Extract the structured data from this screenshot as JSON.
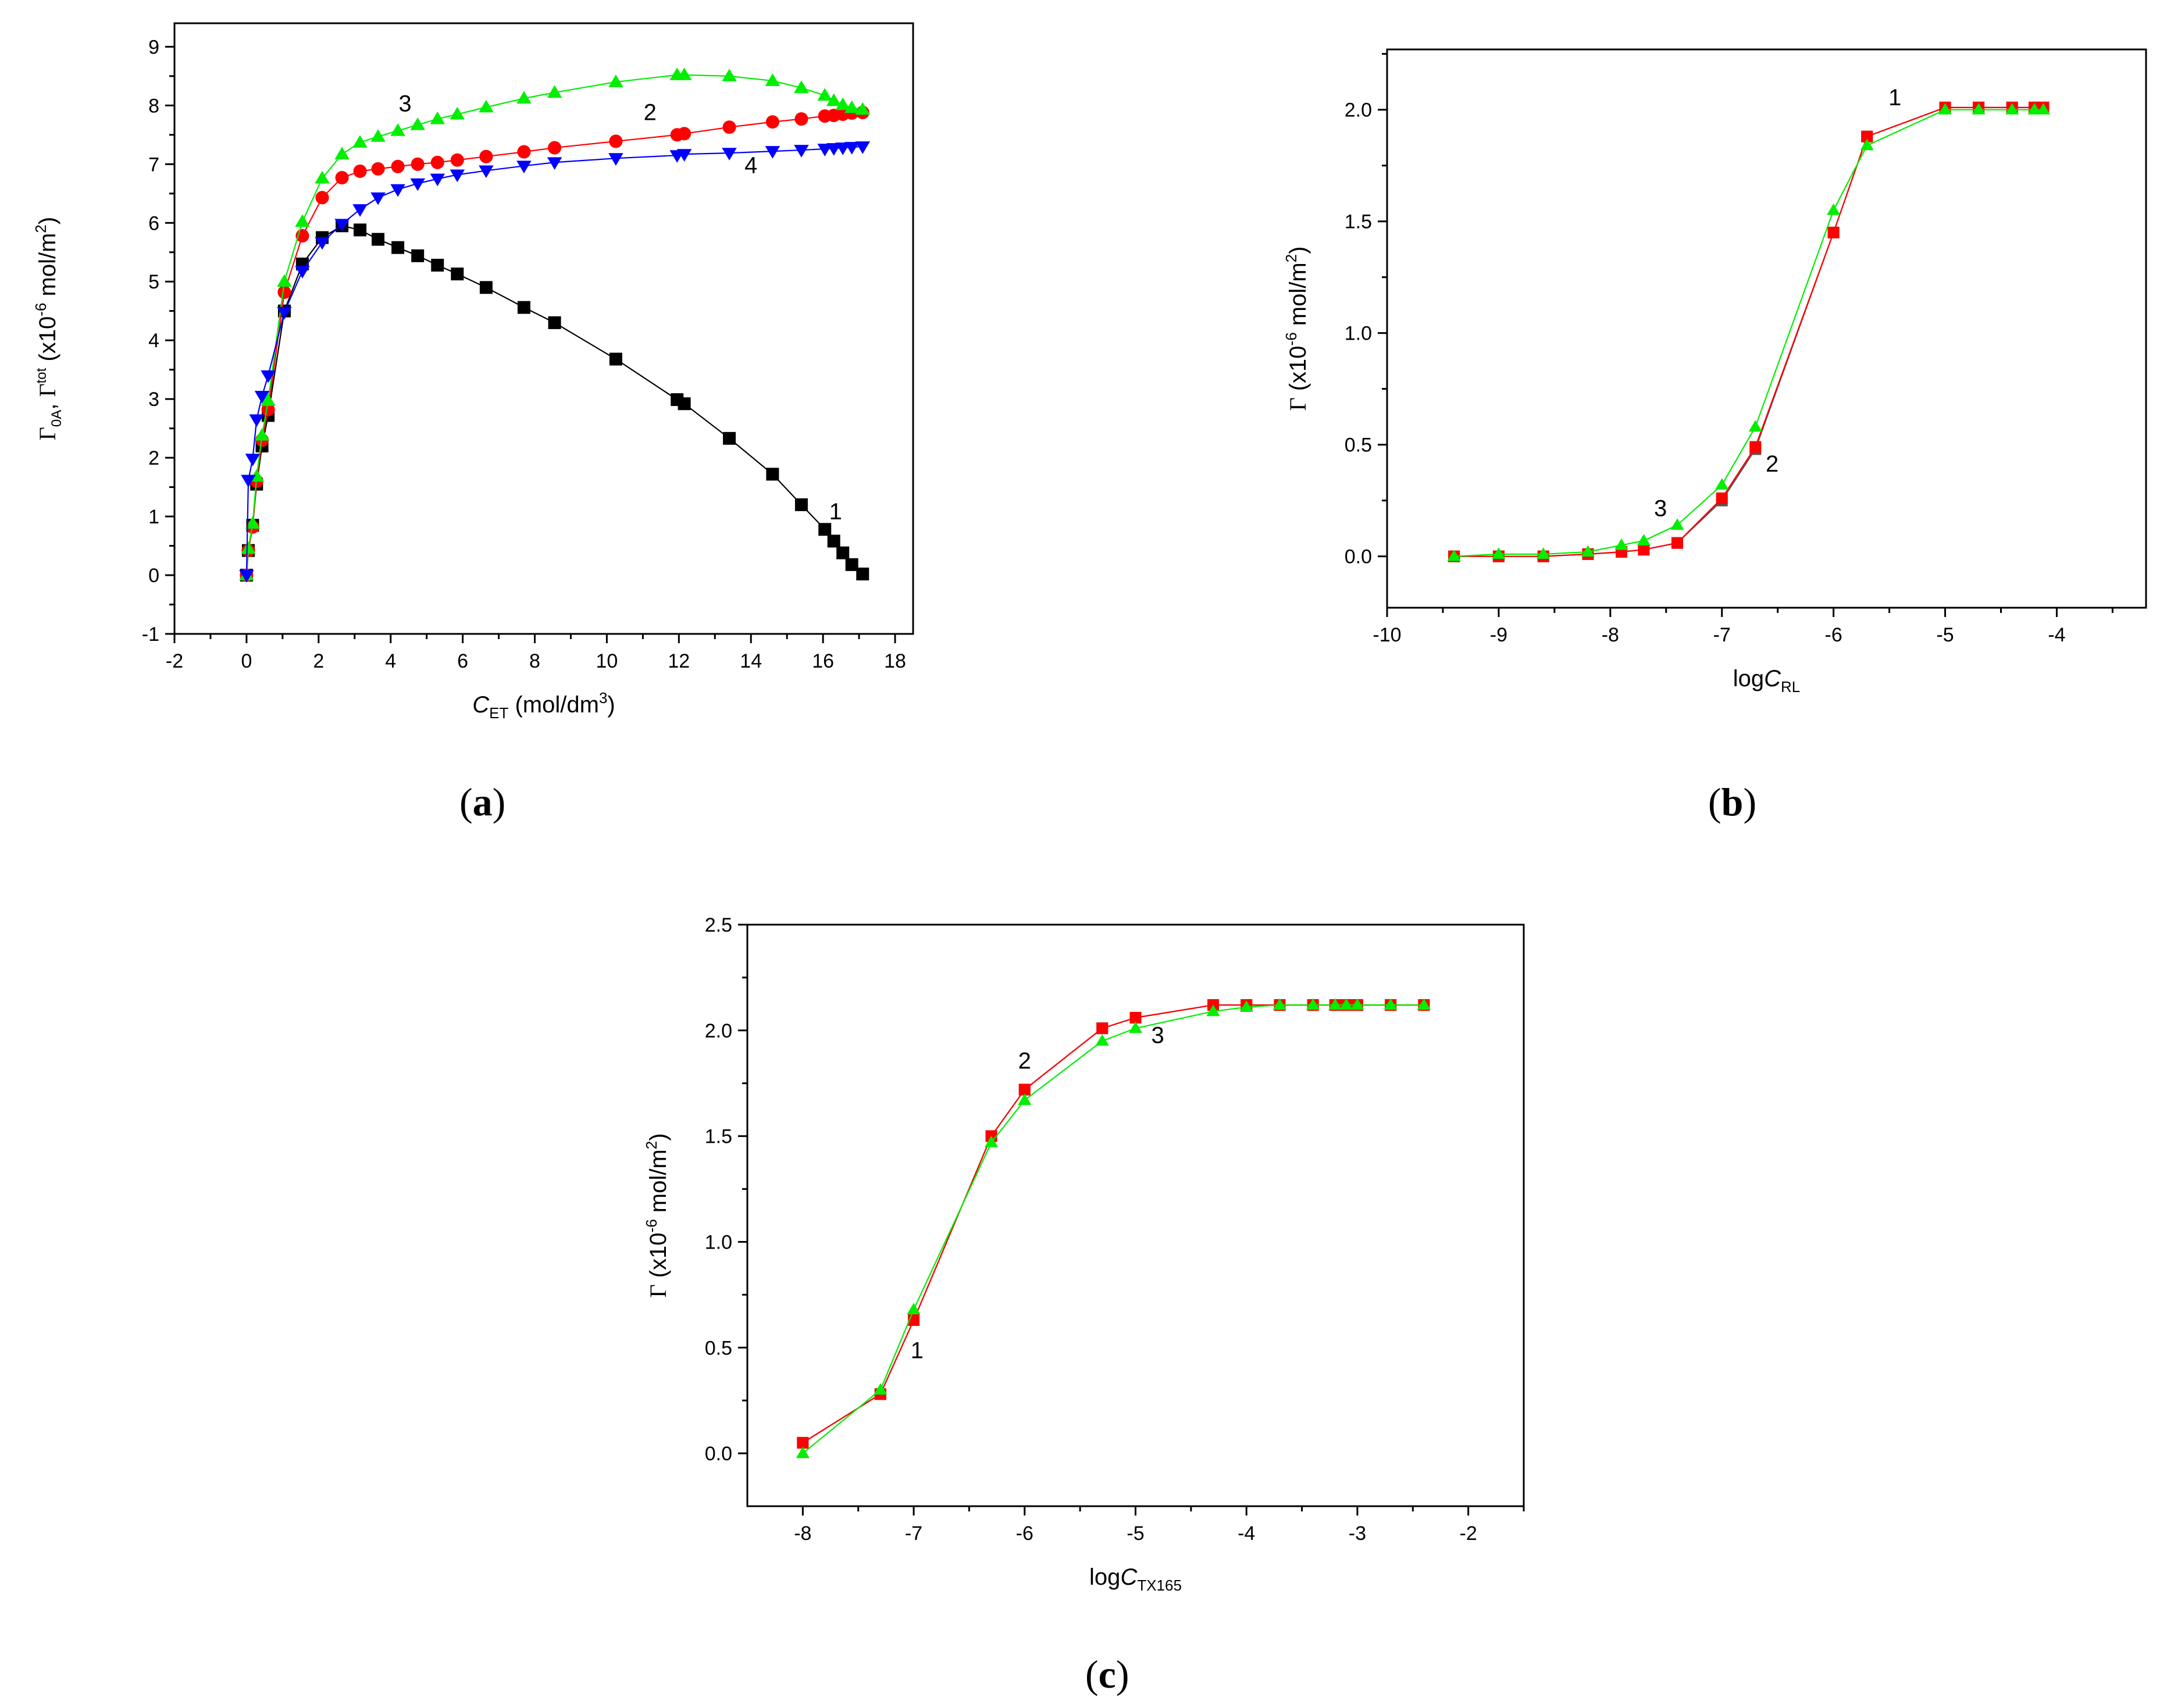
{
  "figure": {
    "panel_labels": {
      "a": "a",
      "b": "b",
      "c": "c"
    }
  },
  "chart_data": [
    {
      "id": "a",
      "type": "scatter",
      "title": "",
      "xlabel": {
        "main": "C",
        "sub": "ET",
        "unit": " (mol/dm",
        "sup": "3",
        "close": ")"
      },
      "ylabel": {
        "g1": "Γ",
        "g1sub": "0A",
        "comma": ", ",
        "g2": "Γ",
        "g2sup": "tot",
        "rest1": " (x10",
        "exp": "-6",
        "rest2": " mol/m",
        "sq": "2",
        "close": ")"
      },
      "xlim": [
        -2,
        18.5
      ],
      "ylim": [
        -1,
        9.4
      ],
      "xticks": [
        -2,
        0,
        2,
        4,
        6,
        8,
        10,
        12,
        14,
        16,
        18
      ],
      "yticks": [
        -1,
        0,
        1,
        2,
        3,
        4,
        5,
        6,
        7,
        8,
        9
      ],
      "series": [
        {
          "name": "1",
          "color": "#000000",
          "marker": "square",
          "x": [
            0,
            0.05,
            0.17,
            0.28,
            0.43,
            0.6,
            1.05,
            1.55,
            2.1,
            2.65,
            3.15,
            3.65,
            4.2,
            4.75,
            5.3,
            5.85,
            6.65,
            7.7,
            8.55,
            10.25,
            11.95,
            12.15,
            13.4,
            14.6,
            15.4,
            16.05,
            16.3,
            16.55,
            16.8,
            17.1
          ],
          "y": [
            0,
            0.42,
            0.85,
            1.55,
            2.2,
            2.72,
            4.5,
            5.3,
            5.75,
            5.95,
            5.88,
            5.72,
            5.58,
            5.44,
            5.28,
            5.13,
            4.9,
            4.56,
            4.3,
            3.68,
            2.99,
            2.92,
            2.33,
            1.72,
            1.2,
            0.78,
            0.58,
            0.38,
            0.18,
            0.02
          ]
        },
        {
          "name": "2",
          "color": "#ff0000",
          "marker": "circle",
          "x": [
            0,
            0.05,
            0.17,
            0.28,
            0.43,
            0.6,
            1.05,
            1.55,
            2.1,
            2.65,
            3.15,
            3.65,
            4.2,
            4.75,
            5.3,
            5.85,
            6.65,
            7.7,
            8.55,
            10.25,
            11.95,
            12.15,
            13.4,
            14.6,
            15.4,
            16.05,
            16.3,
            16.55,
            16.8,
            17.1
          ],
          "y": [
            0,
            0.42,
            0.82,
            1.6,
            2.3,
            2.82,
            4.82,
            5.78,
            6.43,
            6.77,
            6.88,
            6.92,
            6.96,
            7.0,
            7.03,
            7.07,
            7.13,
            7.21,
            7.28,
            7.39,
            7.5,
            7.52,
            7.63,
            7.72,
            7.77,
            7.82,
            7.83,
            7.85,
            7.87,
            7.88
          ]
        },
        {
          "name": "3",
          "color": "#00ee00",
          "marker": "triangle-up",
          "x": [
            0,
            0.05,
            0.17,
            0.28,
            0.43,
            0.6,
            1.05,
            1.55,
            2.1,
            2.65,
            3.15,
            3.65,
            4.2,
            4.75,
            5.3,
            5.85,
            6.65,
            7.7,
            8.55,
            10.25,
            11.95,
            12.15,
            13.4,
            14.6,
            15.4,
            16.05,
            16.3,
            16.55,
            16.8,
            17.1
          ],
          "y": [
            0,
            0.45,
            0.88,
            1.68,
            2.38,
            2.97,
            5.0,
            6.02,
            6.76,
            7.17,
            7.37,
            7.47,
            7.57,
            7.67,
            7.77,
            7.85,
            7.97,
            8.12,
            8.22,
            8.4,
            8.52,
            8.52,
            8.5,
            8.42,
            8.3,
            8.17,
            8.08,
            8.01,
            7.96,
            7.93
          ]
        },
        {
          "name": "4",
          "color": "#0000ff",
          "marker": "triangle-down",
          "x": [
            0,
            0.05,
            0.17,
            0.28,
            0.43,
            0.6,
            1.05,
            1.55,
            2.1,
            2.65,
            3.15,
            3.65,
            4.2,
            4.75,
            5.3,
            5.85,
            6.65,
            7.7,
            8.55,
            10.25,
            11.95,
            12.15,
            13.4,
            14.6,
            15.4,
            16.05,
            16.3,
            16.55,
            16.8,
            17.1
          ],
          "y": [
            0,
            1.62,
            1.98,
            2.65,
            3.05,
            3.4,
            4.48,
            5.18,
            5.67,
            5.98,
            6.23,
            6.43,
            6.57,
            6.67,
            6.75,
            6.82,
            6.89,
            6.97,
            7.03,
            7.1,
            7.15,
            7.17,
            7.19,
            7.22,
            7.24,
            7.26,
            7.27,
            7.28,
            7.29,
            7.3
          ]
        }
      ],
      "annotations": [
        {
          "text": "3",
          "x": 4.4,
          "y": 7.9
        },
        {
          "text": "2",
          "x": 11.2,
          "y": 7.75
        },
        {
          "text": "4",
          "x": 14.0,
          "y": 6.85
        },
        {
          "text": "1",
          "x": 16.35,
          "y": 0.95
        }
      ]
    },
    {
      "id": "b",
      "type": "scatter",
      "title": "",
      "xlabel": {
        "main": "logC",
        "sub": "RL"
      },
      "ylabel": {
        "g": "Γ",
        "rest1": " (x10",
        "exp": "-6",
        "rest2": " mol/m",
        "sq": "2",
        "close": ")"
      },
      "xlim": [
        -10,
        -3.2
      ],
      "ylim": [
        -0.23,
        2.27
      ],
      "xticks": [
        -10,
        -9,
        -8,
        -7,
        -6,
        -5,
        -4
      ],
      "yticks": [
        0.0,
        0.5,
        1.0,
        1.5,
        2.0
      ],
      "ytick_labels": [
        "0.0",
        "0.5",
        "1.0",
        "1.5",
        "2.0"
      ],
      "series": [
        {
          "name": "1",
          "color": "#555555",
          "marker": "square",
          "x": [
            -9.4,
            -9.0,
            -8.6,
            -8.2,
            -7.9,
            -7.7,
            -7.4,
            -7.0,
            -6.7,
            -6.0,
            -5.7,
            -5.0,
            -4.7,
            -4.4,
            -4.2,
            -4.12
          ],
          "y": [
            0.0,
            0.0,
            0.0,
            0.01,
            0.02,
            0.03,
            0.06,
            0.25,
            0.48,
            1.45,
            1.88,
            2.01,
            2.01,
            2.01,
            2.01,
            2.01
          ]
        },
        {
          "name": "2",
          "color": "#ff0000",
          "marker": "square",
          "x": [
            -9.4,
            -9.0,
            -8.6,
            -8.2,
            -7.9,
            -7.7,
            -7.4,
            -7.0,
            -6.7,
            -6.0,
            -5.7,
            -5.0,
            -4.7,
            -4.4,
            -4.2,
            -4.12
          ],
          "y": [
            0.0,
            0.0,
            0.0,
            0.01,
            0.02,
            0.03,
            0.06,
            0.26,
            0.49,
            1.45,
            1.88,
            2.01,
            2.01,
            2.01,
            2.01,
            2.01
          ]
        },
        {
          "name": "3",
          "color": "#00ee00",
          "marker": "triangle-up",
          "x": [
            -9.4,
            -9.0,
            -8.6,
            -8.2,
            -7.9,
            -7.7,
            -7.4,
            -7.0,
            -6.7,
            -6.0,
            -5.7,
            -5.0,
            -4.7,
            -4.4,
            -4.2,
            -4.12
          ],
          "y": [
            0.0,
            0.01,
            0.01,
            0.02,
            0.05,
            0.07,
            0.14,
            0.32,
            0.58,
            1.55,
            1.84,
            2.0,
            2.0,
            2.0,
            2.0,
            2.0
          ]
        }
      ],
      "annotations": [
        {
          "text": "1",
          "x": -5.45,
          "y": 2.02
        },
        {
          "text": "2",
          "x": -6.55,
          "y": 0.38
        },
        {
          "text": "3",
          "x": -7.55,
          "y": 0.18
        }
      ]
    },
    {
      "id": "c",
      "type": "scatter",
      "title": "",
      "xlabel": {
        "main": "logC",
        "sub": "TX165"
      },
      "ylabel": {
        "g": "Γ",
        "rest1": " (x10",
        "exp": "-6",
        "rest2": " mol/m",
        "sq": "2",
        "close": ")"
      },
      "xlim": [
        -8.5,
        -1.5
      ],
      "ylim": [
        -0.25,
        2.5
      ],
      "xticks": [
        -8,
        -7,
        -6,
        -5,
        -4,
        -3,
        -2
      ],
      "yticks": [
        0.0,
        0.5,
        1.0,
        1.5,
        2.0,
        2.5
      ],
      "ytick_labels": [
        "0.0",
        "0.5",
        "1.0",
        "1.5",
        "2.0",
        "2.5"
      ],
      "series": [
        {
          "name": "1",
          "color": "#555555",
          "marker": "square",
          "x": [
            -8.0,
            -7.3,
            -7.0,
            -6.3,
            -6.0,
            -5.3,
            -5.0,
            -4.3,
            -4.0,
            -3.7,
            -3.4,
            -3.2,
            -3.1,
            -3.0,
            -2.7,
            -2.4
          ],
          "y": [
            0.05,
            0.28,
            0.63,
            1.5,
            1.72,
            2.01,
            2.06,
            2.12,
            2.12,
            2.12,
            2.12,
            2.12,
            2.12,
            2.12,
            2.12,
            2.12
          ]
        },
        {
          "name": "2",
          "color": "#ff0000",
          "marker": "square",
          "x": [
            -8.0,
            -7.3,
            -7.0,
            -6.3,
            -6.0,
            -5.3,
            -5.0,
            -4.3,
            -4.0,
            -3.7,
            -3.4,
            -3.2,
            -3.1,
            -3.0,
            -2.7,
            -2.4
          ],
          "y": [
            0.05,
            0.28,
            0.63,
            1.5,
            1.72,
            2.01,
            2.06,
            2.12,
            2.12,
            2.12,
            2.12,
            2.12,
            2.12,
            2.12,
            2.12,
            2.12
          ]
        },
        {
          "name": "3",
          "color": "#00ee00",
          "marker": "triangle-up",
          "x": [
            -8.0,
            -7.3,
            -7.0,
            -6.3,
            -6.0,
            -5.3,
            -5.0,
            -4.3,
            -4.0,
            -3.7,
            -3.4,
            -3.2,
            -3.1,
            -3.0,
            -2.7,
            -2.4
          ],
          "y": [
            0.0,
            0.3,
            0.68,
            1.47,
            1.67,
            1.95,
            2.01,
            2.09,
            2.11,
            2.12,
            2.12,
            2.12,
            2.12,
            2.12,
            2.12,
            2.12
          ]
        }
      ],
      "annotations": [
        {
          "text": "1",
          "x": -6.97,
          "y": 0.45
        },
        {
          "text": "2",
          "x": -6.0,
          "y": 1.82
        },
        {
          "text": "3",
          "x": -4.8,
          "y": 1.94
        }
      ]
    }
  ]
}
